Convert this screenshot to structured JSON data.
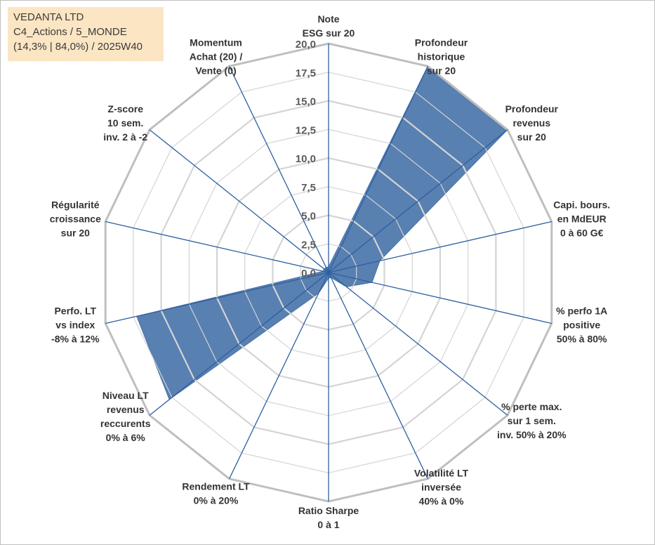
{
  "info": {
    "line1": "VEDANTA LTD",
    "line2": "C4_Actions / 5_MONDE",
    "line3": "(14,3% | 84,0%) / 2025W40"
  },
  "colors": {
    "fill": "#4f79ad",
    "grid_ring": "#bfbfbf",
    "grid_inner": "#d4d4d4",
    "spoke": "#2e5fa3"
  },
  "chart_data": {
    "type": "radar",
    "title": "",
    "rlim": [
      0,
      20
    ],
    "ticks": [
      "0,0",
      "2,5",
      "5,0",
      "7,5",
      "10,0",
      "12,5",
      "15,0",
      "17,5",
      "20,0"
    ],
    "grid": true,
    "axes": [
      {
        "label": [
          "Note",
          "ESG sur 20"
        ],
        "value": 0.5
      },
      {
        "label": [
          "Profondeur",
          "historique",
          "sur 20"
        ],
        "value": 20
      },
      {
        "label": [
          "Profondeur",
          "revenus",
          "sur 20"
        ],
        "value": 20
      },
      {
        "label": [
          "Capi. bours.",
          "en MdEUR",
          "0 à 60 G€"
        ],
        "value": 4.6
      },
      {
        "label": [
          "% perfo 1A",
          "positive",
          "50% à 80%"
        ],
        "value": 3.9
      },
      {
        "label": [
          "% perte max.",
          "sur 1 sem.",
          "inv. 50% à 20%"
        ],
        "value": 2.0
      },
      {
        "label": [
          "Volatilité LT",
          "inversée",
          "40% à 0%"
        ],
        "value": 0.5
      },
      {
        "label": [
          "Ratio Sharpe",
          "0 à 1"
        ],
        "value": 0.5
      },
      {
        "label": [
          "Rendement LT",
          "0% à 20%"
        ],
        "value": 2.0
      },
      {
        "label": [
          "Niveau LT",
          "revenus",
          "reccurents",
          "0% à 6%"
        ],
        "value": 17.8
      },
      {
        "label": [
          "Perfo. LT",
          "vs index",
          "-8% à 12%"
        ],
        "value": 17.2
      },
      {
        "label": [
          "Régularité",
          "croissance",
          "sur 20"
        ],
        "value": 0.5
      },
      {
        "label": [
          "Z-score",
          "10 sem.",
          "inv. 2 à -2"
        ],
        "value": 0.5
      },
      {
        "label": [
          "Momentum",
          "Achat (20) /",
          "Vente (0)"
        ],
        "value": 0.5
      }
    ]
  }
}
